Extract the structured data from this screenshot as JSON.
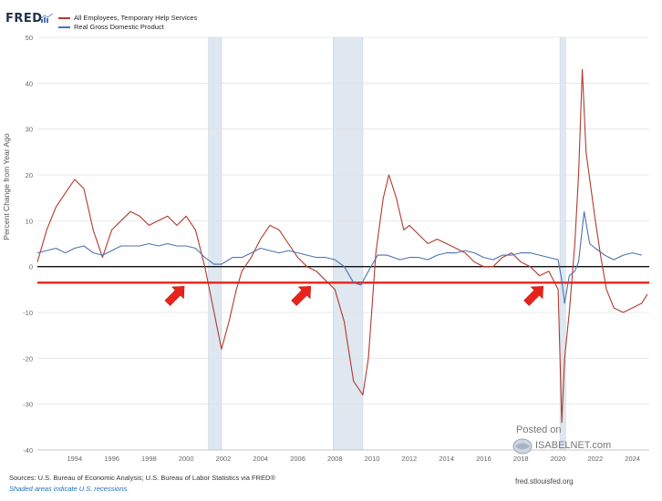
{
  "branding": {
    "fred_logo": "FRED",
    "posted_on": "Posted on",
    "isabelnet": "ISABELNET.com",
    "site": "fred.stlouisfed.org"
  },
  "footer": {
    "sources": "Sources: U.S. Bureau of Economic Analysis; U.S. Bureau of Labor Statistics via FRED®",
    "shaded_note": "Shaded areas indicate U.S. recessions."
  },
  "colors": {
    "temp_help": "#b03a2e",
    "gdp": "#4c72b0",
    "recession": "#dfe7f0",
    "threshold": "#e8231a",
    "zero": "#111111",
    "arrow": "#e8231a"
  },
  "chart_data": {
    "type": "line",
    "ylabel": "Percent Change from Year Ago",
    "xlim": [
      1992.0,
      2024.9
    ],
    "ylim": [
      -40,
      50
    ],
    "y_ticks": [
      50,
      40,
      30,
      20,
      10,
      0,
      -10,
      -20,
      -30,
      -40
    ],
    "x_ticks": [
      1994,
      1996,
      1998,
      2000,
      2002,
      2004,
      2006,
      2008,
      2010,
      2012,
      2014,
      2016,
      2018,
      2020,
      2022,
      2024
    ],
    "grid": true,
    "legend_position": "top-left",
    "recessions": [
      [
        2001.2,
        2001.9
      ],
      [
        2007.9,
        2009.5
      ],
      [
        2020.1,
        2020.4
      ]
    ],
    "zero_line": 0,
    "threshold_line": -3.5,
    "arrows_at": [
      1999.9,
      2006.7,
      2019.2
    ],
    "series": [
      {
        "name": "All Employees, Temporary Help Services",
        "x": [
          1992.0,
          1992.5,
          1993.0,
          1993.5,
          1994.0,
          1994.5,
          1995.0,
          1995.5,
          1996.0,
          1996.5,
          1997.0,
          1997.5,
          1998.0,
          1998.5,
          1999.0,
          1999.5,
          2000.0,
          2000.5,
          2001.0,
          2001.5,
          2001.9,
          2002.3,
          2002.7,
          2003.0,
          2003.5,
          2004.0,
          2004.5,
          2005.0,
          2005.5,
          2006.0,
          2006.5,
          2007.0,
          2007.5,
          2008.0,
          2008.5,
          2009.0,
          2009.5,
          2009.8,
          2010.2,
          2010.6,
          2010.9,
          2011.3,
          2011.7,
          2012.0,
          2012.5,
          2013.0,
          2013.5,
          2014.0,
          2014.5,
          2015.0,
          2015.5,
          2016.0,
          2016.5,
          2017.0,
          2017.5,
          2018.0,
          2018.5,
          2019.0,
          2019.5,
          2020.0,
          2020.2,
          2020.35,
          2020.6,
          2020.9,
          2021.1,
          2021.3,
          2021.5,
          2021.8,
          2022.0,
          2022.3,
          2022.6,
          2023.0,
          2023.5,
          2024.0,
          2024.5,
          2024.8
        ],
        "values": [
          1,
          8,
          13,
          16,
          19,
          17,
          8,
          2,
          8,
          10,
          12,
          11,
          9,
          10,
          11,
          9,
          11,
          8,
          0,
          -10,
          -18,
          -12,
          -5,
          -1,
          2,
          6,
          9,
          8,
          5,
          2,
          0,
          -1,
          -3,
          -5,
          -12,
          -25,
          -28,
          -20,
          3,
          15,
          20,
          15,
          8,
          9,
          7,
          5,
          6,
          5,
          4,
          3,
          1,
          0,
          0,
          2,
          3,
          1,
          0,
          -2,
          -1,
          -5,
          -34,
          -20,
          -10,
          5,
          20,
          43,
          25,
          16,
          10,
          2,
          -5,
          -9,
          -10,
          -9,
          -8,
          -6
        ]
      },
      {
        "name": "Real Gross Domestic Product",
        "x": [
          1992.0,
          1992.5,
          1993.0,
          1993.5,
          1994.0,
          1994.5,
          1995.0,
          1995.5,
          1996.0,
          1996.5,
          1997.0,
          1997.5,
          1998.0,
          1998.5,
          1999.0,
          1999.5,
          2000.0,
          2000.5,
          2001.0,
          2001.5,
          2001.9,
          2002.5,
          2003.0,
          2003.5,
          2004.0,
          2004.5,
          2005.0,
          2005.5,
          2006.0,
          2006.5,
          2007.0,
          2007.5,
          2008.0,
          2008.5,
          2009.0,
          2009.4,
          2009.8,
          2010.3,
          2010.8,
          2011.5,
          2012.0,
          2012.5,
          2013.0,
          2013.5,
          2014.0,
          2014.5,
          2015.0,
          2015.5,
          2016.0,
          2016.5,
          2017.0,
          2017.5,
          2018.0,
          2018.5,
          2019.0,
          2019.5,
          2020.0,
          2020.2,
          2020.35,
          2020.6,
          2020.9,
          2021.1,
          2021.4,
          2021.7,
          2022.0,
          2022.5,
          2023.0,
          2023.5,
          2024.0,
          2024.5
        ],
        "values": [
          3,
          3.5,
          4,
          3,
          4,
          4.5,
          3,
          2.5,
          3.5,
          4.5,
          4.5,
          4.5,
          5,
          4.5,
          5,
          4.5,
          4.5,
          4,
          2,
          0.5,
          0.5,
          2,
          2,
          3,
          4,
          3.5,
          3,
          3.5,
          3,
          2.5,
          2,
          2,
          1.5,
          0,
          -3.5,
          -4,
          -1,
          2.5,
          2.5,
          1.5,
          2,
          2,
          1.5,
          2.5,
          3,
          3,
          3.5,
          3,
          2,
          1.5,
          2.5,
          2.5,
          3,
          3,
          2.5,
          2,
          1.5,
          -3,
          -8,
          -2,
          -1,
          1,
          12,
          5,
          4,
          2.5,
          1.5,
          2.5,
          3,
          2.5
        ]
      }
    ]
  }
}
